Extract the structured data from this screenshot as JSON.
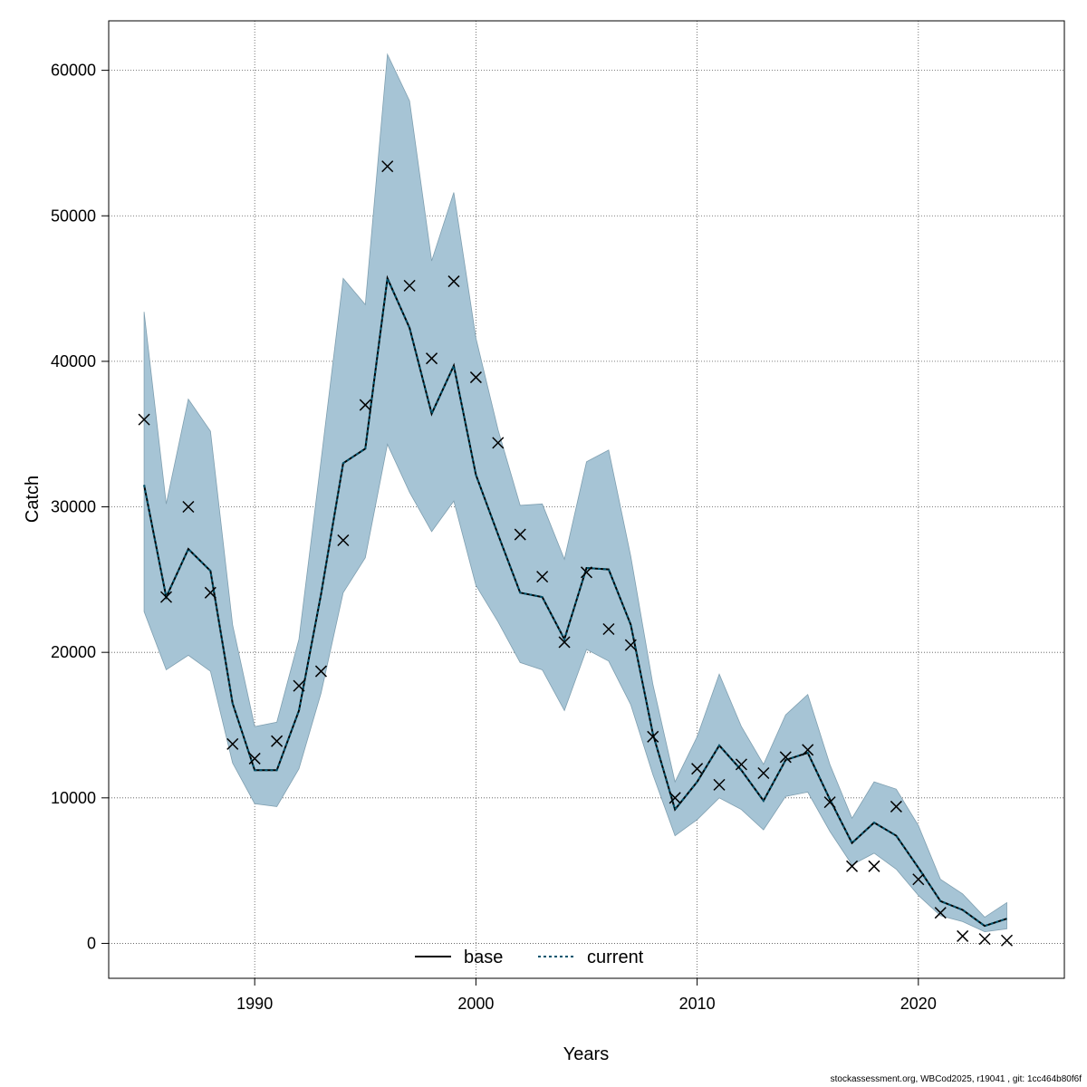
{
  "chart_data": {
    "type": "line",
    "title": "",
    "xlabel": "Years",
    "ylabel": "Catch",
    "xlim": [
      1983.4,
      2026.6
    ],
    "ylim": [
      -2400,
      63400
    ],
    "grid": true,
    "x_ticks": [
      1990,
      2000,
      2010,
      2020
    ],
    "y_ticks": [
      0,
      10000,
      20000,
      30000,
      40000,
      50000,
      60000
    ],
    "x": [
      1985,
      1986,
      1987,
      1988,
      1989,
      1990,
      1991,
      1992,
      1993,
      1994,
      1995,
      1996,
      1997,
      1998,
      1999,
      2000,
      2001,
      2002,
      2003,
      2004,
      2005,
      2006,
      2007,
      2008,
      2009,
      2010,
      2011,
      2012,
      2013,
      2014,
      2015,
      2016,
      2017,
      2018,
      2019,
      2020,
      2021,
      2022,
      2023,
      2024
    ],
    "series": [
      {
        "name": "base",
        "style": "solid",
        "color": "#000000",
        "values": [
          31500,
          23800,
          27100,
          25600,
          16500,
          11900,
          11900,
          16000,
          24000,
          33000,
          34000,
          45700,
          42300,
          36400,
          39700,
          32200,
          28100,
          24100,
          23800,
          20900,
          25800,
          25700,
          21900,
          14400,
          9200,
          11100,
          13600,
          11900,
          9800,
          12600,
          13100,
          9900,
          6900,
          8300,
          7400,
          5200,
          2900,
          2300,
          1200,
          1700
        ]
      },
      {
        "name": "current",
        "style": "dotted",
        "color": "#00556e",
        "values": [
          31500,
          23800,
          27100,
          25600,
          16500,
          11900,
          11900,
          16000,
          24000,
          33000,
          34000,
          45700,
          42300,
          36400,
          39700,
          32200,
          28100,
          24100,
          23800,
          20900,
          25800,
          25700,
          21900,
          14400,
          9200,
          11100,
          13600,
          11900,
          9800,
          12600,
          13100,
          9900,
          6900,
          8300,
          7400,
          5200,
          2900,
          2300,
          1200,
          1700
        ]
      }
    ],
    "confidence_band": {
      "color": "#a6c4d5",
      "upper": [
        43400,
        30200,
        37400,
        35200,
        21900,
        14900,
        15200,
        20900,
        33200,
        45700,
        43900,
        61100,
        57900,
        46900,
        51600,
        41600,
        35300,
        30100,
        30200,
        26400,
        33100,
        33900,
        26600,
        17800,
        11100,
        14200,
        18500,
        14900,
        12300,
        15700,
        17100,
        12300,
        8600,
        11100,
        10600,
        8100,
        4400,
        3400,
        1800,
        2800
      ],
      "lower": [
        22800,
        18800,
        19800,
        18700,
        12400,
        9600,
        9400,
        12000,
        17200,
        24100,
        26500,
        34300,
        31000,
        28300,
        30400,
        24600,
        22100,
        19300,
        18800,
        16000,
        20200,
        19400,
        16400,
        11600,
        7400,
        8500,
        10000,
        9200,
        7800,
        10100,
        10400,
        7700,
        5400,
        6200,
        5100,
        3300,
        1900,
        1500,
        800,
        1000
      ]
    },
    "observations": {
      "marker": "x",
      "values": [
        36000,
        23800,
        30000,
        24100,
        13700,
        12700,
        13900,
        17700,
        18700,
        27700,
        37000,
        53400,
        45200,
        40200,
        45500,
        38900,
        34400,
        28100,
        25200,
        20700,
        25500,
        21600,
        20500,
        14200,
        10000,
        12000,
        10900,
        12300,
        11700,
        12800,
        13300,
        9700,
        5300,
        5300,
        9400,
        4400,
        2100,
        500,
        300,
        200
      ]
    },
    "legend": {
      "placement": "bottom-center",
      "entries": [
        {
          "label": "base",
          "style": "solid"
        },
        {
          "label": "current",
          "style": "dotted"
        }
      ]
    }
  },
  "footer": "stockassessment.org, WBCod2025, r19041 , git: 1cc464b80f6f"
}
